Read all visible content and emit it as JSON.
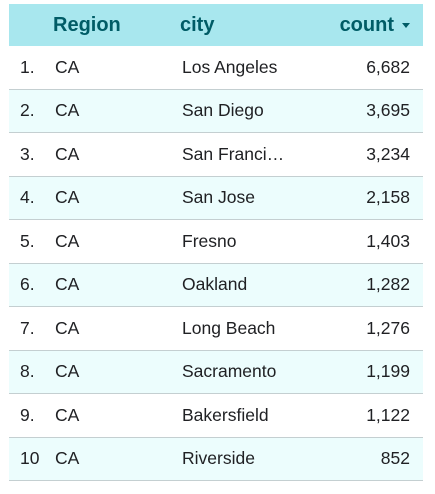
{
  "table": {
    "headers": {
      "region": "Region",
      "city": "city",
      "count": "count"
    },
    "rows": [
      {
        "idx": "1.",
        "region": "CA",
        "city": "Los Angeles",
        "count": "6,682"
      },
      {
        "idx": "2.",
        "region": "CA",
        "city": "San Diego",
        "count": "3,695"
      },
      {
        "idx": "3.",
        "region": "CA",
        "city": "San Franci…",
        "count": "3,234"
      },
      {
        "idx": "4.",
        "region": "CA",
        "city": "San Jose",
        "count": "2,158"
      },
      {
        "idx": "5.",
        "region": "CA",
        "city": "Fresno",
        "count": "1,403"
      },
      {
        "idx": "6.",
        "region": "CA",
        "city": "Oakland",
        "count": "1,282"
      },
      {
        "idx": "7.",
        "region": "CA",
        "city": "Long Beach",
        "count": "1,276"
      },
      {
        "idx": "8.",
        "region": "CA",
        "city": "Sacramento",
        "count": "1,199"
      },
      {
        "idx": "9.",
        "region": "CA",
        "city": "Bakersfield",
        "count": "1,122"
      },
      {
        "idx": "10",
        "region": "CA",
        "city": "Riverside",
        "count": "852"
      }
    ],
    "sort_icon": "caret-down-icon"
  }
}
